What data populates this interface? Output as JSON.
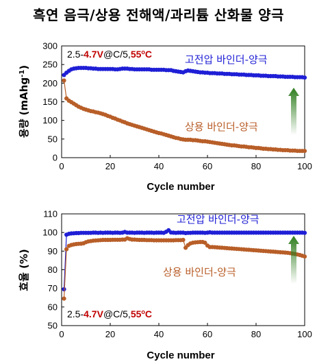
{
  "title": "흑연 음극/상용 전해액/과리튬 산화물 양극",
  "colors": {
    "blue_series": "#1f1fd6",
    "orange_series": "#b85e28",
    "condition_red": "#c00000",
    "arrow_green": "#2e7d1e"
  },
  "chart_data": [
    {
      "type": "scatter",
      "condition_label": {
        "prefix": "2.5-",
        "voltage": "4.7V",
        "rate": "@C/5,",
        "temp": "55",
        "deg": "o",
        "unit": "C"
      },
      "xlabel": "Cycle number",
      "ylabel": "용량 (mAhg",
      "ylabel_sup": "-1",
      "ylabel_close": ")",
      "xlim": [
        0,
        100
      ],
      "ylim": [
        0,
        300
      ],
      "xticks": [
        "0",
        "20",
        "40",
        "60",
        "80",
        "100"
      ],
      "yticks": [
        "0",
        "50",
        "100",
        "150",
        "200",
        "250",
        "300"
      ],
      "arrow": "up",
      "series": [
        {
          "name": "고전압 바인더-양극",
          "color": "#1f1fd6",
          "x": [
            1,
            2,
            3,
            4,
            5,
            6,
            7,
            8,
            9,
            10,
            11,
            12,
            13,
            14,
            15,
            16,
            17,
            18,
            19,
            20,
            21,
            22,
            23,
            24,
            25,
            26,
            27,
            28,
            29,
            30,
            31,
            32,
            33,
            34,
            35,
            36,
            37,
            38,
            39,
            40,
            41,
            42,
            43,
            44,
            45,
            46,
            47,
            48,
            49,
            50,
            51,
            52,
            53,
            54,
            55,
            56,
            57,
            58,
            59,
            60,
            61,
            62,
            63,
            64,
            65,
            66,
            67,
            68,
            69,
            70,
            71,
            72,
            73,
            74,
            75,
            76,
            77,
            78,
            79,
            80,
            81,
            82,
            83,
            84,
            85,
            86,
            87,
            88,
            89,
            90,
            91,
            92,
            93,
            94,
            95,
            96,
            97,
            98,
            99,
            100
          ],
          "y": [
            222,
            228,
            233,
            237,
            239,
            240,
            241,
            241,
            241,
            241,
            240,
            240,
            239,
            239,
            238,
            238,
            238,
            238,
            238,
            238,
            238,
            237,
            237,
            238,
            239,
            239,
            239,
            238,
            238,
            237,
            237,
            237,
            237,
            237,
            237,
            237,
            236,
            236,
            236,
            236,
            236,
            236,
            235,
            235,
            235,
            233,
            232,
            231,
            230,
            229,
            232,
            234,
            233,
            232,
            231,
            230,
            229,
            229,
            228,
            228,
            227,
            227,
            227,
            226,
            226,
            226,
            225,
            225,
            225,
            224,
            224,
            224,
            223,
            223,
            223,
            222,
            222,
            222,
            221,
            221,
            221,
            220,
            220,
            220,
            219,
            219,
            219,
            219,
            218,
            218,
            218,
            217,
            217,
            217,
            217,
            216,
            216,
            216,
            216,
            215
          ]
        },
        {
          "name": "상용 바인더-양극",
          "color": "#b85e28",
          "x": [
            1,
            2,
            3,
            4,
            5,
            6,
            7,
            8,
            9,
            10,
            11,
            12,
            13,
            14,
            15,
            16,
            17,
            18,
            19,
            20,
            21,
            22,
            23,
            24,
            25,
            26,
            27,
            28,
            29,
            30,
            31,
            32,
            33,
            34,
            35,
            36,
            37,
            38,
            39,
            40,
            41,
            42,
            43,
            44,
            45,
            46,
            47,
            48,
            49,
            50,
            51,
            52,
            53,
            54,
            55,
            56,
            57,
            58,
            59,
            60,
            61,
            62,
            63,
            64,
            65,
            66,
            67,
            68,
            69,
            70,
            71,
            72,
            73,
            74,
            75,
            76,
            77,
            78,
            79,
            80,
            81,
            82,
            83,
            84,
            85,
            86,
            87,
            88,
            89,
            90,
            91,
            92,
            93,
            94,
            95,
            96,
            97,
            98,
            99,
            100
          ],
          "y": [
            207,
            159,
            153,
            149,
            145,
            141,
            137,
            134,
            131,
            129,
            127,
            125,
            124,
            122,
            121,
            119,
            117,
            115,
            112,
            110,
            107,
            105,
            102,
            100,
            97,
            95,
            92,
            90,
            88,
            86,
            84,
            82,
            80,
            78,
            76,
            74,
            72,
            70,
            68,
            66,
            65,
            63,
            61,
            59,
            57,
            55,
            53,
            52,
            50,
            49,
            48,
            48,
            48,
            47,
            47,
            46,
            45,
            44,
            44,
            43,
            42,
            41,
            40,
            39,
            38,
            37,
            36,
            35,
            34,
            33,
            33,
            32,
            31,
            30,
            30,
            29,
            28,
            28,
            27,
            26,
            26,
            25,
            24,
            24,
            23,
            23,
            22,
            22,
            21,
            21,
            20,
            20,
            20,
            19,
            19,
            19,
            18,
            18,
            18,
            18
          ]
        }
      ]
    },
    {
      "type": "scatter",
      "condition_label": {
        "prefix": "2.5-",
        "voltage": "4.7V",
        "rate": "@C/5,",
        "temp": "55",
        "deg": "o",
        "unit": "C"
      },
      "xlabel": "Cycle number",
      "ylabel": "효율 (%)",
      "xlim": [
        0,
        100
      ],
      "ylim": [
        50,
        110
      ],
      "xticks": [
        "0",
        "20",
        "40",
        "60",
        "80",
        "100"
      ],
      "yticks": [
        "50",
        "60",
        "70",
        "80",
        "90",
        "100",
        "110"
      ],
      "arrow": "up",
      "series": [
        {
          "name": "고전압 바인더-양극",
          "color": "#1f1fd6",
          "x": [
            1,
            2,
            3,
            4,
            5,
            6,
            7,
            8,
            9,
            10,
            11,
            12,
            13,
            14,
            15,
            16,
            17,
            18,
            19,
            20,
            21,
            22,
            23,
            24,
            25,
            26,
            27,
            28,
            29,
            30,
            31,
            32,
            33,
            34,
            35,
            36,
            37,
            38,
            39,
            40,
            41,
            42,
            43,
            44,
            45,
            46,
            47,
            48,
            49,
            50,
            51,
            52,
            53,
            54,
            55,
            56,
            57,
            58,
            59,
            60,
            61,
            62,
            63,
            64,
            65,
            66,
            67,
            68,
            69,
            70,
            71,
            72,
            73,
            74,
            75,
            76,
            77,
            78,
            79,
            80,
            81,
            82,
            83,
            84,
            85,
            86,
            87,
            88,
            89,
            90,
            91,
            92,
            93,
            94,
            95,
            96,
            97,
            98,
            99,
            100
          ],
          "y": [
            69.5,
            98.8,
            99.3,
            99.5,
            99.6,
            99.7,
            99.7,
            99.8,
            99.8,
            99.8,
            99.8,
            99.8,
            99.9,
            99.9,
            99.8,
            99.9,
            99.8,
            99.9,
            99.9,
            99.9,
            99.8,
            99.9,
            99.9,
            99.8,
            99.9,
            100.3,
            99.9,
            99.9,
            99.9,
            99.8,
            99.9,
            99.9,
            99.9,
            99.8,
            99.9,
            99.9,
            99.9,
            99.8,
            99.9,
            99.9,
            99.9,
            99.8,
            100.4,
            101.2,
            100.0,
            99.9,
            99.8,
            99.9,
            99.9,
            99.9,
            99.7,
            99.8,
            99.8,
            99.9,
            99.9,
            99.9,
            99.9,
            99.9,
            99.8,
            99.9,
            100.1,
            99.9,
            99.9,
            99.9,
            99.9,
            99.9,
            99.9,
            99.9,
            99.9,
            99.9,
            99.9,
            99.9,
            99.9,
            99.9,
            99.9,
            99.9,
            99.9,
            99.9,
            99.9,
            99.9,
            99.9,
            99.9,
            99.9,
            99.9,
            99.9,
            99.9,
            99.9,
            99.9,
            99.9,
            99.9,
            99.9,
            99.9,
            99.9,
            99.9,
            99.9,
            99.9,
            99.9,
            99.9,
            99.9,
            99.8
          ]
        },
        {
          "name": "상용 바인더-양극",
          "color": "#b85e28",
          "x": [
            1,
            2,
            3,
            4,
            5,
            6,
            7,
            8,
            9,
            10,
            11,
            12,
            13,
            14,
            15,
            16,
            17,
            18,
            19,
            20,
            21,
            22,
            23,
            24,
            25,
            26,
            27,
            28,
            29,
            30,
            31,
            32,
            33,
            34,
            35,
            36,
            37,
            38,
            39,
            40,
            41,
            42,
            43,
            44,
            45,
            46,
            47,
            48,
            49,
            50,
            51,
            52,
            53,
            54,
            55,
            56,
            57,
            58,
            59,
            60,
            61,
            62,
            63,
            64,
            65,
            66,
            67,
            68,
            69,
            70,
            71,
            72,
            73,
            74,
            75,
            76,
            77,
            78,
            79,
            80,
            81,
            82,
            83,
            84,
            85,
            86,
            87,
            88,
            89,
            90,
            91,
            92,
            93,
            94,
            95,
            96,
            97,
            98,
            99,
            100
          ],
          "y": [
            64.5,
            91.0,
            92.8,
            93.3,
            93.6,
            93.8,
            93.9,
            94.0,
            94.2,
            94.8,
            95.2,
            95.4,
            95.6,
            95.7,
            95.8,
            95.9,
            96.0,
            96.0,
            96.0,
            96.0,
            96.1,
            96.1,
            96.1,
            96.1,
            96.2,
            96.2,
            96.9,
            96.5,
            96.2,
            96.2,
            96.1,
            96.0,
            96.0,
            96.0,
            95.9,
            95.9,
            95.9,
            95.8,
            95.8,
            95.8,
            95.8,
            95.8,
            95.8,
            95.8,
            95.8,
            95.8,
            95.9,
            95.9,
            95.9,
            96.0,
            91.8,
            93.2,
            94.1,
            94.5,
            94.7,
            94.8,
            94.9,
            94.9,
            94.5,
            93.0,
            92.2,
            92.2,
            92.1,
            92.0,
            91.9,
            91.8,
            91.7,
            91.6,
            91.5,
            91.4,
            91.3,
            91.2,
            91.1,
            91.0,
            90.9,
            90.8,
            90.7,
            90.6,
            90.5,
            90.4,
            90.3,
            90.2,
            90.1,
            90.0,
            89.9,
            89.8,
            89.7,
            89.6,
            89.5,
            89.4,
            89.3,
            89.2,
            89.1,
            88.9,
            88.7,
            88.5,
            88.2,
            87.9,
            87.5,
            87.1
          ]
        }
      ]
    }
  ]
}
